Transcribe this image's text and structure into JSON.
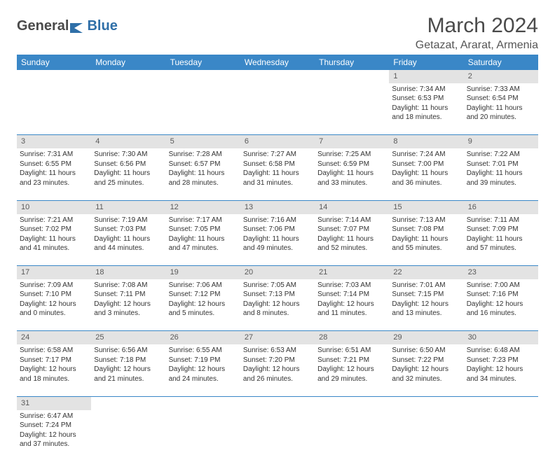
{
  "brand": {
    "part1": "General",
    "part2": "Blue"
  },
  "title": "March 2024",
  "location": "Getazat, Ararat, Armenia",
  "colors": {
    "header_bg": "#3a87c7",
    "header_text": "#ffffff",
    "daynum_bg": "#e3e3e3",
    "divider": "#3a87c7",
    "text": "#333333"
  },
  "weekdays": [
    "Sunday",
    "Monday",
    "Tuesday",
    "Wednesday",
    "Thursday",
    "Friday",
    "Saturday"
  ],
  "weeks": [
    {
      "nums": [
        "",
        "",
        "",
        "",
        "",
        "1",
        "2"
      ],
      "cells": [
        null,
        null,
        null,
        null,
        null,
        {
          "sunrise": "Sunrise: 7:34 AM",
          "sunset": "Sunset: 6:53 PM",
          "day1": "Daylight: 11 hours",
          "day2": "and 18 minutes."
        },
        {
          "sunrise": "Sunrise: 7:33 AM",
          "sunset": "Sunset: 6:54 PM",
          "day1": "Daylight: 11 hours",
          "day2": "and 20 minutes."
        }
      ]
    },
    {
      "nums": [
        "3",
        "4",
        "5",
        "6",
        "7",
        "8",
        "9"
      ],
      "cells": [
        {
          "sunrise": "Sunrise: 7:31 AM",
          "sunset": "Sunset: 6:55 PM",
          "day1": "Daylight: 11 hours",
          "day2": "and 23 minutes."
        },
        {
          "sunrise": "Sunrise: 7:30 AM",
          "sunset": "Sunset: 6:56 PM",
          "day1": "Daylight: 11 hours",
          "day2": "and 25 minutes."
        },
        {
          "sunrise": "Sunrise: 7:28 AM",
          "sunset": "Sunset: 6:57 PM",
          "day1": "Daylight: 11 hours",
          "day2": "and 28 minutes."
        },
        {
          "sunrise": "Sunrise: 7:27 AM",
          "sunset": "Sunset: 6:58 PM",
          "day1": "Daylight: 11 hours",
          "day2": "and 31 minutes."
        },
        {
          "sunrise": "Sunrise: 7:25 AM",
          "sunset": "Sunset: 6:59 PM",
          "day1": "Daylight: 11 hours",
          "day2": "and 33 minutes."
        },
        {
          "sunrise": "Sunrise: 7:24 AM",
          "sunset": "Sunset: 7:00 PM",
          "day1": "Daylight: 11 hours",
          "day2": "and 36 minutes."
        },
        {
          "sunrise": "Sunrise: 7:22 AM",
          "sunset": "Sunset: 7:01 PM",
          "day1": "Daylight: 11 hours",
          "day2": "and 39 minutes."
        }
      ]
    },
    {
      "nums": [
        "10",
        "11",
        "12",
        "13",
        "14",
        "15",
        "16"
      ],
      "cells": [
        {
          "sunrise": "Sunrise: 7:21 AM",
          "sunset": "Sunset: 7:02 PM",
          "day1": "Daylight: 11 hours",
          "day2": "and 41 minutes."
        },
        {
          "sunrise": "Sunrise: 7:19 AM",
          "sunset": "Sunset: 7:03 PM",
          "day1": "Daylight: 11 hours",
          "day2": "and 44 minutes."
        },
        {
          "sunrise": "Sunrise: 7:17 AM",
          "sunset": "Sunset: 7:05 PM",
          "day1": "Daylight: 11 hours",
          "day2": "and 47 minutes."
        },
        {
          "sunrise": "Sunrise: 7:16 AM",
          "sunset": "Sunset: 7:06 PM",
          "day1": "Daylight: 11 hours",
          "day2": "and 49 minutes."
        },
        {
          "sunrise": "Sunrise: 7:14 AM",
          "sunset": "Sunset: 7:07 PM",
          "day1": "Daylight: 11 hours",
          "day2": "and 52 minutes."
        },
        {
          "sunrise": "Sunrise: 7:13 AM",
          "sunset": "Sunset: 7:08 PM",
          "day1": "Daylight: 11 hours",
          "day2": "and 55 minutes."
        },
        {
          "sunrise": "Sunrise: 7:11 AM",
          "sunset": "Sunset: 7:09 PM",
          "day1": "Daylight: 11 hours",
          "day2": "and 57 minutes."
        }
      ]
    },
    {
      "nums": [
        "17",
        "18",
        "19",
        "20",
        "21",
        "22",
        "23"
      ],
      "cells": [
        {
          "sunrise": "Sunrise: 7:09 AM",
          "sunset": "Sunset: 7:10 PM",
          "day1": "Daylight: 12 hours",
          "day2": "and 0 minutes."
        },
        {
          "sunrise": "Sunrise: 7:08 AM",
          "sunset": "Sunset: 7:11 PM",
          "day1": "Daylight: 12 hours",
          "day2": "and 3 minutes."
        },
        {
          "sunrise": "Sunrise: 7:06 AM",
          "sunset": "Sunset: 7:12 PM",
          "day1": "Daylight: 12 hours",
          "day2": "and 5 minutes."
        },
        {
          "sunrise": "Sunrise: 7:05 AM",
          "sunset": "Sunset: 7:13 PM",
          "day1": "Daylight: 12 hours",
          "day2": "and 8 minutes."
        },
        {
          "sunrise": "Sunrise: 7:03 AM",
          "sunset": "Sunset: 7:14 PM",
          "day1": "Daylight: 12 hours",
          "day2": "and 11 minutes."
        },
        {
          "sunrise": "Sunrise: 7:01 AM",
          "sunset": "Sunset: 7:15 PM",
          "day1": "Daylight: 12 hours",
          "day2": "and 13 minutes."
        },
        {
          "sunrise": "Sunrise: 7:00 AM",
          "sunset": "Sunset: 7:16 PM",
          "day1": "Daylight: 12 hours",
          "day2": "and 16 minutes."
        }
      ]
    },
    {
      "nums": [
        "24",
        "25",
        "26",
        "27",
        "28",
        "29",
        "30"
      ],
      "cells": [
        {
          "sunrise": "Sunrise: 6:58 AM",
          "sunset": "Sunset: 7:17 PM",
          "day1": "Daylight: 12 hours",
          "day2": "and 18 minutes."
        },
        {
          "sunrise": "Sunrise: 6:56 AM",
          "sunset": "Sunset: 7:18 PM",
          "day1": "Daylight: 12 hours",
          "day2": "and 21 minutes."
        },
        {
          "sunrise": "Sunrise: 6:55 AM",
          "sunset": "Sunset: 7:19 PM",
          "day1": "Daylight: 12 hours",
          "day2": "and 24 minutes."
        },
        {
          "sunrise": "Sunrise: 6:53 AM",
          "sunset": "Sunset: 7:20 PM",
          "day1": "Daylight: 12 hours",
          "day2": "and 26 minutes."
        },
        {
          "sunrise": "Sunrise: 6:51 AM",
          "sunset": "Sunset: 7:21 PM",
          "day1": "Daylight: 12 hours",
          "day2": "and 29 minutes."
        },
        {
          "sunrise": "Sunrise: 6:50 AM",
          "sunset": "Sunset: 7:22 PM",
          "day1": "Daylight: 12 hours",
          "day2": "and 32 minutes."
        },
        {
          "sunrise": "Sunrise: 6:48 AM",
          "sunset": "Sunset: 7:23 PM",
          "day1": "Daylight: 12 hours",
          "day2": "and 34 minutes."
        }
      ]
    },
    {
      "nums": [
        "31",
        "",
        "",
        "",
        "",
        "",
        ""
      ],
      "cells": [
        {
          "sunrise": "Sunrise: 6:47 AM",
          "sunset": "Sunset: 7:24 PM",
          "day1": "Daylight: 12 hours",
          "day2": "and 37 minutes."
        },
        null,
        null,
        null,
        null,
        null,
        null
      ]
    }
  ]
}
